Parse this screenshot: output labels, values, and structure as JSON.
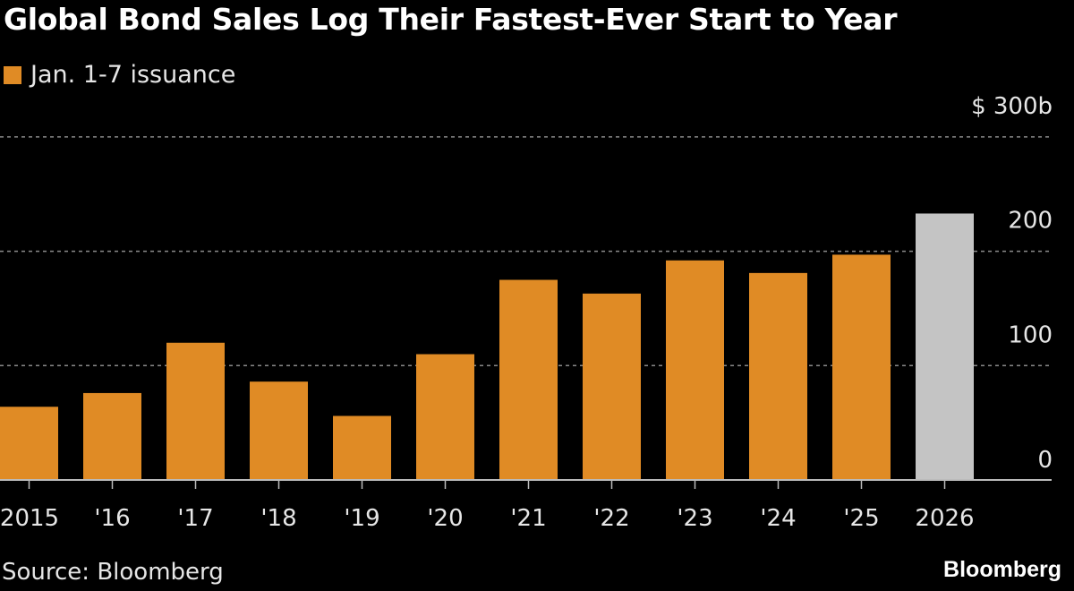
{
  "chart_data": {
    "type": "bar",
    "title": "Global Bond Sales Log Their Fastest-Ever Start to Year",
    "legend": [
      {
        "name": "Jan. 1-7 issuance",
        "color": "#e08b25"
      }
    ],
    "legend_placement": "top-left",
    "categories": [
      "2015",
      "'16",
      "'17",
      "'18",
      "'19",
      "'20",
      "'21",
      "'22",
      "'23",
      "'24",
      "'25",
      "2026"
    ],
    "series": [
      {
        "name": "Jan. 1-7 issuance",
        "values": [
          64,
          76,
          120,
          86,
          56,
          110,
          175,
          163,
          192,
          181,
          197,
          233
        ]
      }
    ],
    "bar_colors": [
      "#e08b25",
      "#e08b25",
      "#e08b25",
      "#e08b25",
      "#e08b25",
      "#e08b25",
      "#e08b25",
      "#e08b25",
      "#e08b25",
      "#e08b25",
      "#e08b25",
      "#c4c4c4"
    ],
    "ylim": [
      0,
      300
    ],
    "yticks": [
      0,
      100,
      200,
      300
    ],
    "ytick_labels": [
      "0",
      "100",
      "200",
      "$ 300b"
    ],
    "y_axis_side": "right",
    "grid": true,
    "xlabel": "",
    "ylabel": ""
  },
  "source": "Source: Bloomberg",
  "logo": "Bloomberg"
}
